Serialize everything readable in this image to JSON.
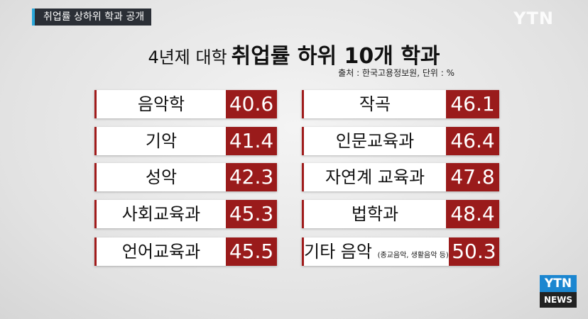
{
  "banner": "취업률 상하위 학과 공개",
  "watermark": "YTN",
  "title": {
    "prefix": "4년제 대학",
    "main": "취업률 하위 10개 학과"
  },
  "source": "출처 : 한국고용정보원, 단위 : %",
  "items": [
    {
      "name": "음악학",
      "value": 40.6
    },
    {
      "name": "기악",
      "value": 41.4
    },
    {
      "name": "성악",
      "value": 42.3
    },
    {
      "name": "사회교육과",
      "value": 45.3
    },
    {
      "name": "언어교육과",
      "value": 45.5
    },
    {
      "name": "작곡",
      "value": 46.1
    },
    {
      "name": "인문교육과",
      "value": 46.4
    },
    {
      "name": "자연계 교육과",
      "value": 47.8
    },
    {
      "name": "법학과",
      "value": 48.4
    },
    {
      "name": "기타 음악",
      "note": "(종교음악, 생활음악 등)",
      "value": 50.3
    }
  ],
  "logo": {
    "top": "YTN",
    "bottom": "NEWS"
  }
}
